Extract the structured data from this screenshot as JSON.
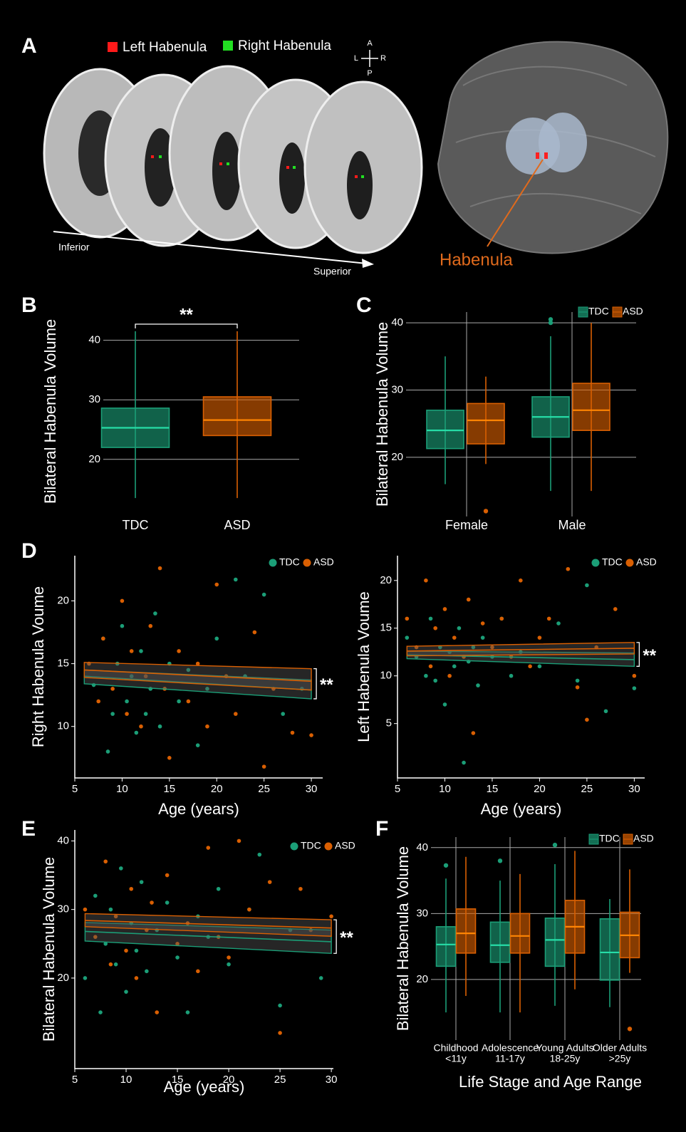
{
  "panel_labels": [
    "A",
    "B",
    "C",
    "D",
    "E",
    "F"
  ],
  "panel_a": {
    "legend": [
      "Left Habenula",
      "Right Habenula"
    ],
    "legend_colors": [
      "#ff1a1a",
      "#22e022"
    ],
    "compass": [
      "A",
      "L",
      "R",
      "P"
    ],
    "arrow_start": "Inferior",
    "arrow_end": "Superior",
    "pointer": "Habenula"
  },
  "chart_data": [
    {
      "type": "box",
      "ylabel": "Bilateral Habenula Volume",
      "categories": [
        "TDC",
        "ASD"
      ],
      "annotation": "**",
      "boxes": [
        {
          "color": "#1b9e77",
          "low": 13.5,
          "q1": 22,
          "median": 25.3,
          "q3": 28.6,
          "high": 41.5
        },
        {
          "color": "#d95f02",
          "low": 13.5,
          "q1": 24,
          "median": 26.6,
          "q3": 30.5,
          "high": 41.5
        }
      ],
      "ylim": [
        13.4,
        42.7
      ],
      "yticks": [
        20,
        30,
        40
      ],
      "grid": true
    },
    {
      "type": "grouped_box",
      "ylabel": "Bilateral Habenula Volume",
      "categories": [
        "Female",
        "Male"
      ],
      "legend": "top-right",
      "series": [
        {
          "name": "TDC",
          "color": "#1b9e77",
          "boxes": [
            {
              "low": 16,
              "q1": 21.3,
              "median": 24,
              "q3": 27,
              "high": 35,
              "outliers": []
            },
            {
              "low": 15,
              "q1": 23,
              "median": 26,
              "q3": 29,
              "high": 38,
              "outliers": [
                40,
                40.5
              ]
            }
          ]
        },
        {
          "name": "ASD",
          "color": "#d95f02",
          "boxes": [
            {
              "low": 19,
              "q1": 22,
              "median": 25.5,
              "q3": 28,
              "high": 32,
              "outliers": [
                12
              ]
            },
            {
              "low": 15,
              "q1": 24,
              "median": 27,
              "q3": 31,
              "high": 40,
              "outliers": []
            }
          ]
        }
      ],
      "ylim": [
        11.2,
        41.6
      ],
      "yticks": [
        20,
        30,
        40
      ],
      "grid": true
    },
    {
      "type": "scatter",
      "xlabel": "Age (years)",
      "ylabel": "Right Habenula Voume",
      "annotation": "**",
      "legend": "top-right",
      "series": [
        {
          "name": "TDC",
          "color": "#1b9e77",
          "x": [
            7,
            8,
            8.5,
            9,
            9.5,
            10,
            10.5,
            11,
            11.5,
            12,
            12.5,
            13,
            13.5,
            14,
            15,
            16,
            17,
            18,
            19,
            20,
            22,
            23,
            25,
            27,
            29
          ],
          "y": [
            13.3,
            17,
            8,
            11,
            15,
            18,
            12,
            14,
            9.5,
            16,
            11,
            13,
            19,
            10,
            15,
            12,
            14.5,
            8.5,
            13,
            17,
            21.7,
            14,
            20.5,
            11,
            13
          ],
          "fit": {
            "x": [
              6,
              30
            ],
            "y": [
              14.0,
              12.9
            ],
            "ci_low": [
              13.4,
              12.2
            ],
            "ci_high": [
              14.5,
              13.7
            ]
          }
        },
        {
          "name": "ASD",
          "color": "#d95f02",
          "x": [
            6.5,
            7.5,
            8,
            9,
            10,
            10.5,
            11,
            12,
            12.5,
            13,
            14,
            14.5,
            15,
            16,
            17,
            18,
            19,
            20,
            21,
            22,
            24,
            25,
            26,
            28,
            30
          ],
          "y": [
            15,
            12,
            17,
            13,
            20,
            11,
            16,
            10,
            14,
            18,
            22.6,
            13,
            7.5,
            16,
            12,
            15,
            10,
            21.3,
            14,
            11,
            17.5,
            6.8,
            13,
            9.5,
            9.3
          ],
          "fit": {
            "x": [
              6,
              30
            ],
            "y": [
              14.5,
              13.6
            ],
            "ci_low": [
              13.9,
              12.9
            ],
            "ci_high": [
              15.1,
              14.6
            ]
          }
        }
      ],
      "xlim": [
        5,
        31.2
      ],
      "ylim": [
        5.9,
        23.6
      ],
      "xticks": [
        5,
        10,
        15,
        20,
        25,
        30
      ],
      "yticks": [
        10,
        15,
        20
      ]
    },
    {
      "type": "scatter",
      "xlabel": "Age (years)",
      "ylabel": "Left Habenula Voume",
      "annotation": "**",
      "legend": "top-right",
      "series": [
        {
          "name": "TDC",
          "color": "#1b9e77",
          "x": [
            6,
            7,
            8,
            8.5,
            9,
            9.5,
            10,
            10.5,
            11,
            11.5,
            12,
            12.5,
            13,
            13.5,
            14,
            15,
            16,
            17,
            18,
            20,
            22,
            24,
            25,
            27,
            30
          ],
          "y": [
            14,
            12,
            10,
            16,
            9.5,
            13,
            7,
            12.5,
            11,
            15,
            0.9,
            11.5,
            13,
            9,
            14,
            12,
            16,
            10,
            12.5,
            11,
            15.5,
            9.5,
            19.5,
            6.3,
            8.7
          ],
          "fit": {
            "x": [
              6,
              30
            ],
            "y": [
              12.2,
              11.7
            ],
            "ci_low": [
              11.8,
              11.0
            ],
            "ci_high": [
              12.6,
              12.4
            ]
          }
        },
        {
          "name": "ASD",
          "color": "#d95f02",
          "x": [
            6,
            7,
            8,
            8.5,
            9,
            10,
            10.5,
            11,
            12,
            12.5,
            13,
            14,
            15,
            16,
            17,
            18,
            19,
            20,
            21,
            23,
            24,
            25,
            26,
            28,
            30
          ],
          "y": [
            16,
            13,
            20,
            11,
            15,
            17,
            10,
            14,
            12,
            18,
            4,
            15.5,
            13,
            16,
            12,
            20,
            11,
            14,
            16,
            21.2,
            8.8,
            5.4,
            13,
            17,
            10
          ],
          "fit": {
            "x": [
              6,
              30
            ],
            "y": [
              12.6,
              12.9
            ],
            "ci_low": [
              12.1,
              12.3
            ],
            "ci_high": [
              13.1,
              13.5
            ]
          }
        }
      ],
      "xlim": [
        5,
        31.1
      ],
      "ylim": [
        -0.7,
        22.6
      ],
      "xticks": [
        5,
        10,
        15,
        20,
        25,
        30
      ],
      "yticks": [
        5,
        10,
        15,
        20
      ]
    },
    {
      "type": "scatter",
      "xlabel": "Age (years)",
      "ylabel": "Bilateral Habenula Volume",
      "annotation": "**",
      "legend": "top-right",
      "series": [
        {
          "name": "TDC",
          "color": "#1b9e77",
          "x": [
            6,
            7,
            7.5,
            8,
            8.5,
            9,
            9.5,
            10,
            10.5,
            11,
            11.5,
            12,
            13,
            14,
            15,
            16,
            17,
            18,
            19,
            20,
            22,
            23,
            25,
            26,
            29
          ],
          "y": [
            20,
            32,
            15,
            25,
            30,
            22,
            36,
            18,
            28,
            24,
            34,
            21,
            27,
            31,
            23,
            15,
            29,
            26,
            33,
            22,
            30,
            38,
            16,
            27,
            20
          ],
          "fit": {
            "x": [
              6,
              30
            ],
            "y": [
              26.8,
              25.3
            ],
            "ci_low": [
              25.4,
              23.6
            ],
            "ci_high": [
              28.1,
              27.0
            ]
          }
        },
        {
          "name": "ASD",
          "color": "#d95f02",
          "x": [
            6,
            7,
            8,
            8.5,
            9,
            10,
            10.5,
            11,
            12,
            12.5,
            13,
            14,
            15,
            16,
            17,
            18,
            19,
            20,
            21,
            22,
            24,
            25,
            27,
            28,
            30
          ],
          "y": [
            30,
            26,
            37,
            22,
            29,
            24,
            33,
            20,
            27,
            31,
            15,
            35,
            25,
            28,
            21,
            39,
            26,
            23,
            40,
            30,
            34,
            12,
            33,
            27,
            29
          ],
          "fit": {
            "x": [
              6,
              30
            ],
            "y": [
              28.4,
              27.3
            ],
            "ci_low": [
              27.5,
              26.1
            ],
            "ci_high": [
              29.4,
              28.5
            ]
          }
        }
      ],
      "xlim": [
        5,
        30.2
      ],
      "ylim": [
        6.8,
        41.6
      ],
      "xticks": [
        5,
        10,
        15,
        20,
        25,
        30
      ],
      "yticks": [
        20,
        30,
        40
      ]
    },
    {
      "type": "grouped_box",
      "ylabel": "Bilateral Habenula Volume",
      "xlabel": "Life Stage and Age Range",
      "legend": "top-right",
      "categories": [
        [
          "Childhood",
          "<11y"
        ],
        [
          "Adolescence",
          "11-17y"
        ],
        [
          "Young Adults",
          "18-25y"
        ],
        [
          "Older Adults",
          ">25y"
        ]
      ],
      "series": [
        {
          "name": "TDC",
          "color": "#1b9e77",
          "boxes": [
            {
              "low": 15,
              "q1": 22,
              "median": 25.3,
              "q3": 28,
              "high": 35.3,
              "outliers": [
                37.3
              ]
            },
            {
              "low": 15,
              "q1": 22.6,
              "median": 25.2,
              "q3": 28.7,
              "high": 35,
              "outliers": [
                38
              ]
            },
            {
              "low": 16,
              "q1": 22,
              "median": 26,
              "q3": 29.3,
              "high": 37.5,
              "outliers": [
                40.4
              ]
            },
            {
              "low": 15.8,
              "q1": 19.9,
              "median": 24.1,
              "q3": 29.2,
              "high": 32.2,
              "outliers": []
            }
          ]
        },
        {
          "name": "ASD",
          "color": "#d95f02",
          "boxes": [
            {
              "low": 17.5,
              "q1": 24,
              "median": 27,
              "q3": 30.7,
              "high": 38.6,
              "outliers": []
            },
            {
              "low": 15,
              "q1": 24,
              "median": 26.6,
              "q3": 30,
              "high": 36,
              "outliers": []
            },
            {
              "low": 18.5,
              "q1": 24,
              "median": 28,
              "q3": 32,
              "high": 39.5,
              "outliers": []
            },
            {
              "low": 21,
              "q1": 23.3,
              "median": 26.7,
              "q3": 30.2,
              "high": 36.7,
              "outliers": [
                12.5
              ]
            }
          ]
        }
      ],
      "ylim": [
        10.8,
        41.6
      ],
      "yticks": [
        20,
        30,
        40
      ],
      "grid": true
    }
  ]
}
